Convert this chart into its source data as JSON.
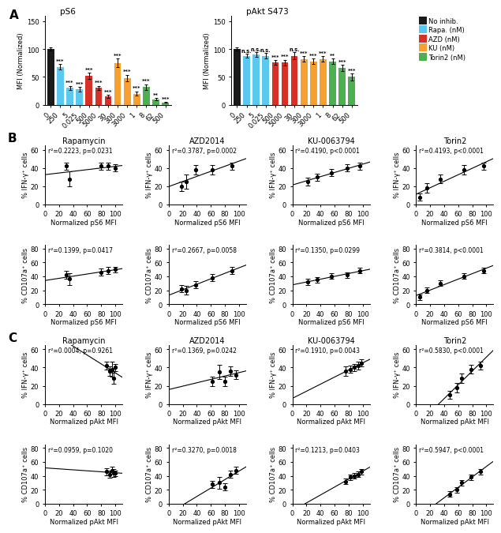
{
  "panel_A_left": {
    "title": "pS6",
    "ylabel": "MFI (Normalized)",
    "ylim": [
      0,
      160
    ],
    "yticks": [
      0,
      50,
      100,
      150
    ],
    "categories": [
      "0",
      "250",
      "5",
      "0.025",
      "500",
      "5000",
      "30",
      "300",
      "3000",
      "1",
      "8",
      "62",
      "500"
    ],
    "values": [
      100,
      68,
      30,
      28,
      52,
      30,
      15,
      75,
      48,
      20,
      32,
      10,
      4
    ],
    "errors": [
      3,
      5,
      4,
      4,
      6,
      4,
      3,
      8,
      6,
      4,
      5,
      2,
      1
    ],
    "colors": [
      "#1a1a1a",
      "#5bc8f0",
      "#5bc8f0",
      "#5bc8f0",
      "#d73027",
      "#d73027",
      "#d73027",
      "#f5a030",
      "#f5a030",
      "#f5a030",
      "#4caf50",
      "#4caf50",
      "#4caf50"
    ],
    "stars": [
      "",
      "***",
      "***",
      "***",
      "***",
      "***",
      "***",
      "***",
      "***",
      "***",
      "***",
      "**",
      "***"
    ]
  },
  "panel_A_right": {
    "title": "pAkt S473",
    "ylabel": "MFI (Normalized)",
    "ylim": [
      0,
      160
    ],
    "yticks": [
      0,
      50,
      100,
      150
    ],
    "categories": [
      "0",
      "250",
      "5",
      "0.025",
      "500",
      "5000",
      "30",
      "300",
      "3000",
      "1",
      "8",
      "62",
      "500"
    ],
    "values": [
      100,
      88,
      90,
      88,
      76,
      76,
      88,
      82,
      78,
      82,
      78,
      66,
      50
    ],
    "errors": [
      3,
      4,
      4,
      5,
      4,
      5,
      6,
      5,
      5,
      5,
      5,
      6,
      6
    ],
    "colors": [
      "#1a1a1a",
      "#5bc8f0",
      "#5bc8f0",
      "#5bc8f0",
      "#d73027",
      "#d73027",
      "#d73027",
      "#f5a030",
      "#f5a030",
      "#f5a030",
      "#4caf50",
      "#4caf50",
      "#4caf50"
    ],
    "stars": [
      "",
      "n.s.",
      "n.s.",
      "n.s.",
      "***",
      "***",
      "n.s.",
      "***",
      "***",
      "***",
      "**",
      "***",
      "***"
    ]
  },
  "legend": {
    "labels": [
      "No inhib.",
      "Rapa. (nM)",
      "AZD (nM)",
      "KU (nM)",
      "Torin2 (nM)"
    ],
    "colors": [
      "#1a1a1a",
      "#5bc8f0",
      "#d73027",
      "#f5a030",
      "#4caf50"
    ]
  },
  "panel_B": {
    "row_labels": [
      "Rapamycin",
      "AZD2014",
      "KU-0063794",
      "Torin2"
    ],
    "row1_stats": [
      "r²=0.2223, p=0.0231",
      "r²=0.3787, p=0.0002",
      "r²=0.4190, p<0.0001",
      "r²=0.4193, p<0.0001"
    ],
    "row2_stats": [
      "r²=0.1399, p=0.0417",
      "r²=0.2667, p=0.0058",
      "r²=0.1350, p=0.0299",
      "r²=0.3814, p<0.0001"
    ],
    "xlabel": "Normalized pS6 MFI",
    "row1_ylabel": "% IFN-γ⁺ cells",
    "row2_ylabel": "% CD107a⁺ cells",
    "xlim": [
      0,
      110
    ],
    "xticks": [
      0,
      20,
      40,
      60,
      80,
      100
    ],
    "row1_ylim": [
      0,
      65
    ],
    "row1_yticks": [
      0,
      20,
      40,
      60
    ],
    "row2_ylim": [
      0,
      85
    ],
    "row2_yticks": [
      0,
      20,
      40,
      60,
      80
    ],
    "scatter_data": {
      "Rapa_IFN": {
        "x": [
          30,
          35,
          80,
          90,
          100
        ],
        "y": [
          42,
          28,
          42,
          42,
          40
        ],
        "yerr": [
          4,
          8,
          4,
          4,
          4
        ]
      },
      "AZD_IFN": {
        "x": [
          18,
          25,
          38,
          62,
          90
        ],
        "y": [
          20,
          25,
          38,
          38,
          42
        ],
        "yerr": [
          5,
          8,
          5,
          5,
          4
        ]
      },
      "KU_IFN": {
        "x": [
          22,
          35,
          55,
          78,
          96
        ],
        "y": [
          25,
          30,
          35,
          40,
          42
        ],
        "yerr": [
          4,
          4,
          4,
          4,
          4
        ]
      },
      "Torin_IFN": {
        "x": [
          5,
          15,
          35,
          68,
          96
        ],
        "y": [
          8,
          18,
          28,
          38,
          42
        ],
        "yerr": [
          4,
          5,
          5,
          5,
          4
        ]
      },
      "Rapa_CD107": {
        "x": [
          30,
          35,
          80,
          90,
          100
        ],
        "y": [
          42,
          36,
          46,
          48,
          50
        ],
        "yerr": [
          6,
          8,
          5,
          5,
          4
        ]
      },
      "AZD_CD107": {
        "x": [
          18,
          25,
          38,
          62,
          90
        ],
        "y": [
          22,
          20,
          28,
          38,
          48
        ],
        "yerr": [
          5,
          6,
          5,
          5,
          5
        ]
      },
      "KU_CD107": {
        "x": [
          22,
          35,
          55,
          78,
          96
        ],
        "y": [
          32,
          35,
          40,
          42,
          48
        ],
        "yerr": [
          4,
          4,
          4,
          4,
          4
        ]
      },
      "Torin_CD107": {
        "x": [
          5,
          15,
          35,
          68,
          96
        ],
        "y": [
          10,
          20,
          30,
          40,
          48
        ],
        "yerr": [
          4,
          4,
          4,
          4,
          4
        ]
      }
    }
  },
  "panel_C": {
    "row_labels": [
      "Rapamycin",
      "AZD2014",
      "KU-0063794",
      "Torin2"
    ],
    "row1_stats": [
      "r²=0.0004, p=0.9261",
      "r²=0.1369, p=0.0242",
      "r²=0.1910, p=0.0043",
      "r²=0.5830, p<0.0001"
    ],
    "row2_stats": [
      "r²=0.0959, p=0.1020",
      "r²=0.3270, p=0.0018",
      "r²=0.1213, p=0.0403",
      "r²=0.5947, p<0.0001"
    ],
    "xlabel": "Normalized pAkt MFI",
    "row1_ylabel": "% IFN-γ⁺ cells",
    "row2_ylabel": "% CD107a⁺ cells",
    "xlim": [
      0,
      110
    ],
    "xticks": [
      0,
      20,
      40,
      60,
      80,
      100
    ],
    "row1_ylim": [
      0,
      65
    ],
    "row1_yticks": [
      0,
      20,
      40,
      60
    ],
    "row2_ylim": [
      0,
      85
    ],
    "row2_yticks": [
      0,
      20,
      40,
      60,
      80
    ],
    "scatter_data": {
      "Rapa_IFN": {
        "x": [
          88,
          92,
          95,
          98,
          100
        ],
        "y": [
          42,
          36,
          38,
          28,
          40
        ],
        "yerr": [
          4,
          5,
          8,
          6,
          4
        ]
      },
      "AZD_IFN": {
        "x": [
          62,
          72,
          80,
          88,
          96
        ],
        "y": [
          25,
          35,
          25,
          36,
          32
        ],
        "yerr": [
          5,
          8,
          5,
          5,
          5
        ]
      },
      "KU_IFN": {
        "x": [
          76,
          82,
          88,
          94,
          98
        ],
        "y": [
          36,
          38,
          40,
          42,
          45
        ],
        "yerr": [
          5,
          4,
          4,
          4,
          4
        ]
      },
      "Torin_IFN": {
        "x": [
          48,
          58,
          65,
          78,
          92
        ],
        "y": [
          10,
          18,
          28,
          38,
          42
        ],
        "yerr": [
          4,
          5,
          5,
          5,
          4
        ]
      },
      "Rapa_CD107": {
        "x": [
          88,
          92,
          95,
          98,
          100
        ],
        "y": [
          46,
          42,
          48,
          44,
          44
        ],
        "yerr": [
          5,
          5,
          5,
          6,
          4
        ]
      },
      "AZD_CD107": {
        "x": [
          62,
          72,
          80,
          88,
          96
        ],
        "y": [
          28,
          30,
          24,
          42,
          48
        ],
        "yerr": [
          5,
          8,
          5,
          5,
          5
        ]
      },
      "KU_CD107": {
        "x": [
          76,
          82,
          88,
          94,
          98
        ],
        "y": [
          32,
          38,
          40,
          42,
          46
        ],
        "yerr": [
          4,
          4,
          4,
          4,
          4
        ]
      },
      "Torin_CD107": {
        "x": [
          48,
          58,
          65,
          78,
          92
        ],
        "y": [
          14,
          20,
          30,
          38,
          46
        ],
        "yerr": [
          4,
          4,
          4,
          4,
          4
        ]
      }
    }
  },
  "background_color": "#ffffff",
  "fontsize": 7,
  "title_fontsize": 7,
  "label_fontsize": 6,
  "stat_fontsize": 5.5
}
